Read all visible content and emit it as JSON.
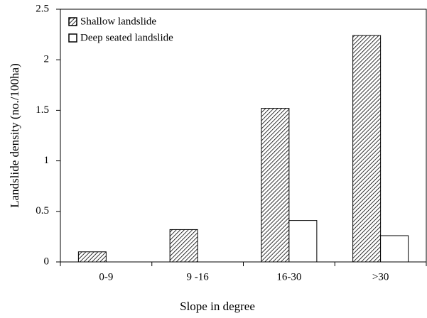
{
  "chart_data": {
    "type": "bar",
    "categories": [
      "0-9",
      "9 -16",
      "16-30",
      ">30"
    ],
    "series": [
      {
        "name": "Shallow landslide",
        "color": "#000000",
        "values": [
          0.1,
          0.32,
          1.52,
          2.24
        ]
      },
      {
        "name": "Deep seated landslide",
        "color": "#ffffff",
        "values": [
          0,
          0,
          0.41,
          0.26
        ]
      }
    ],
    "xlabel": "Slope in degree",
    "ylabel": "Landslide density (no./100ha)",
    "ylim": [
      0,
      2.5
    ],
    "yticks": [
      0,
      0.5,
      1,
      1.5,
      2,
      2.5
    ],
    "legend": "upper left",
    "hatch": [
      "////",
      ""
    ]
  }
}
